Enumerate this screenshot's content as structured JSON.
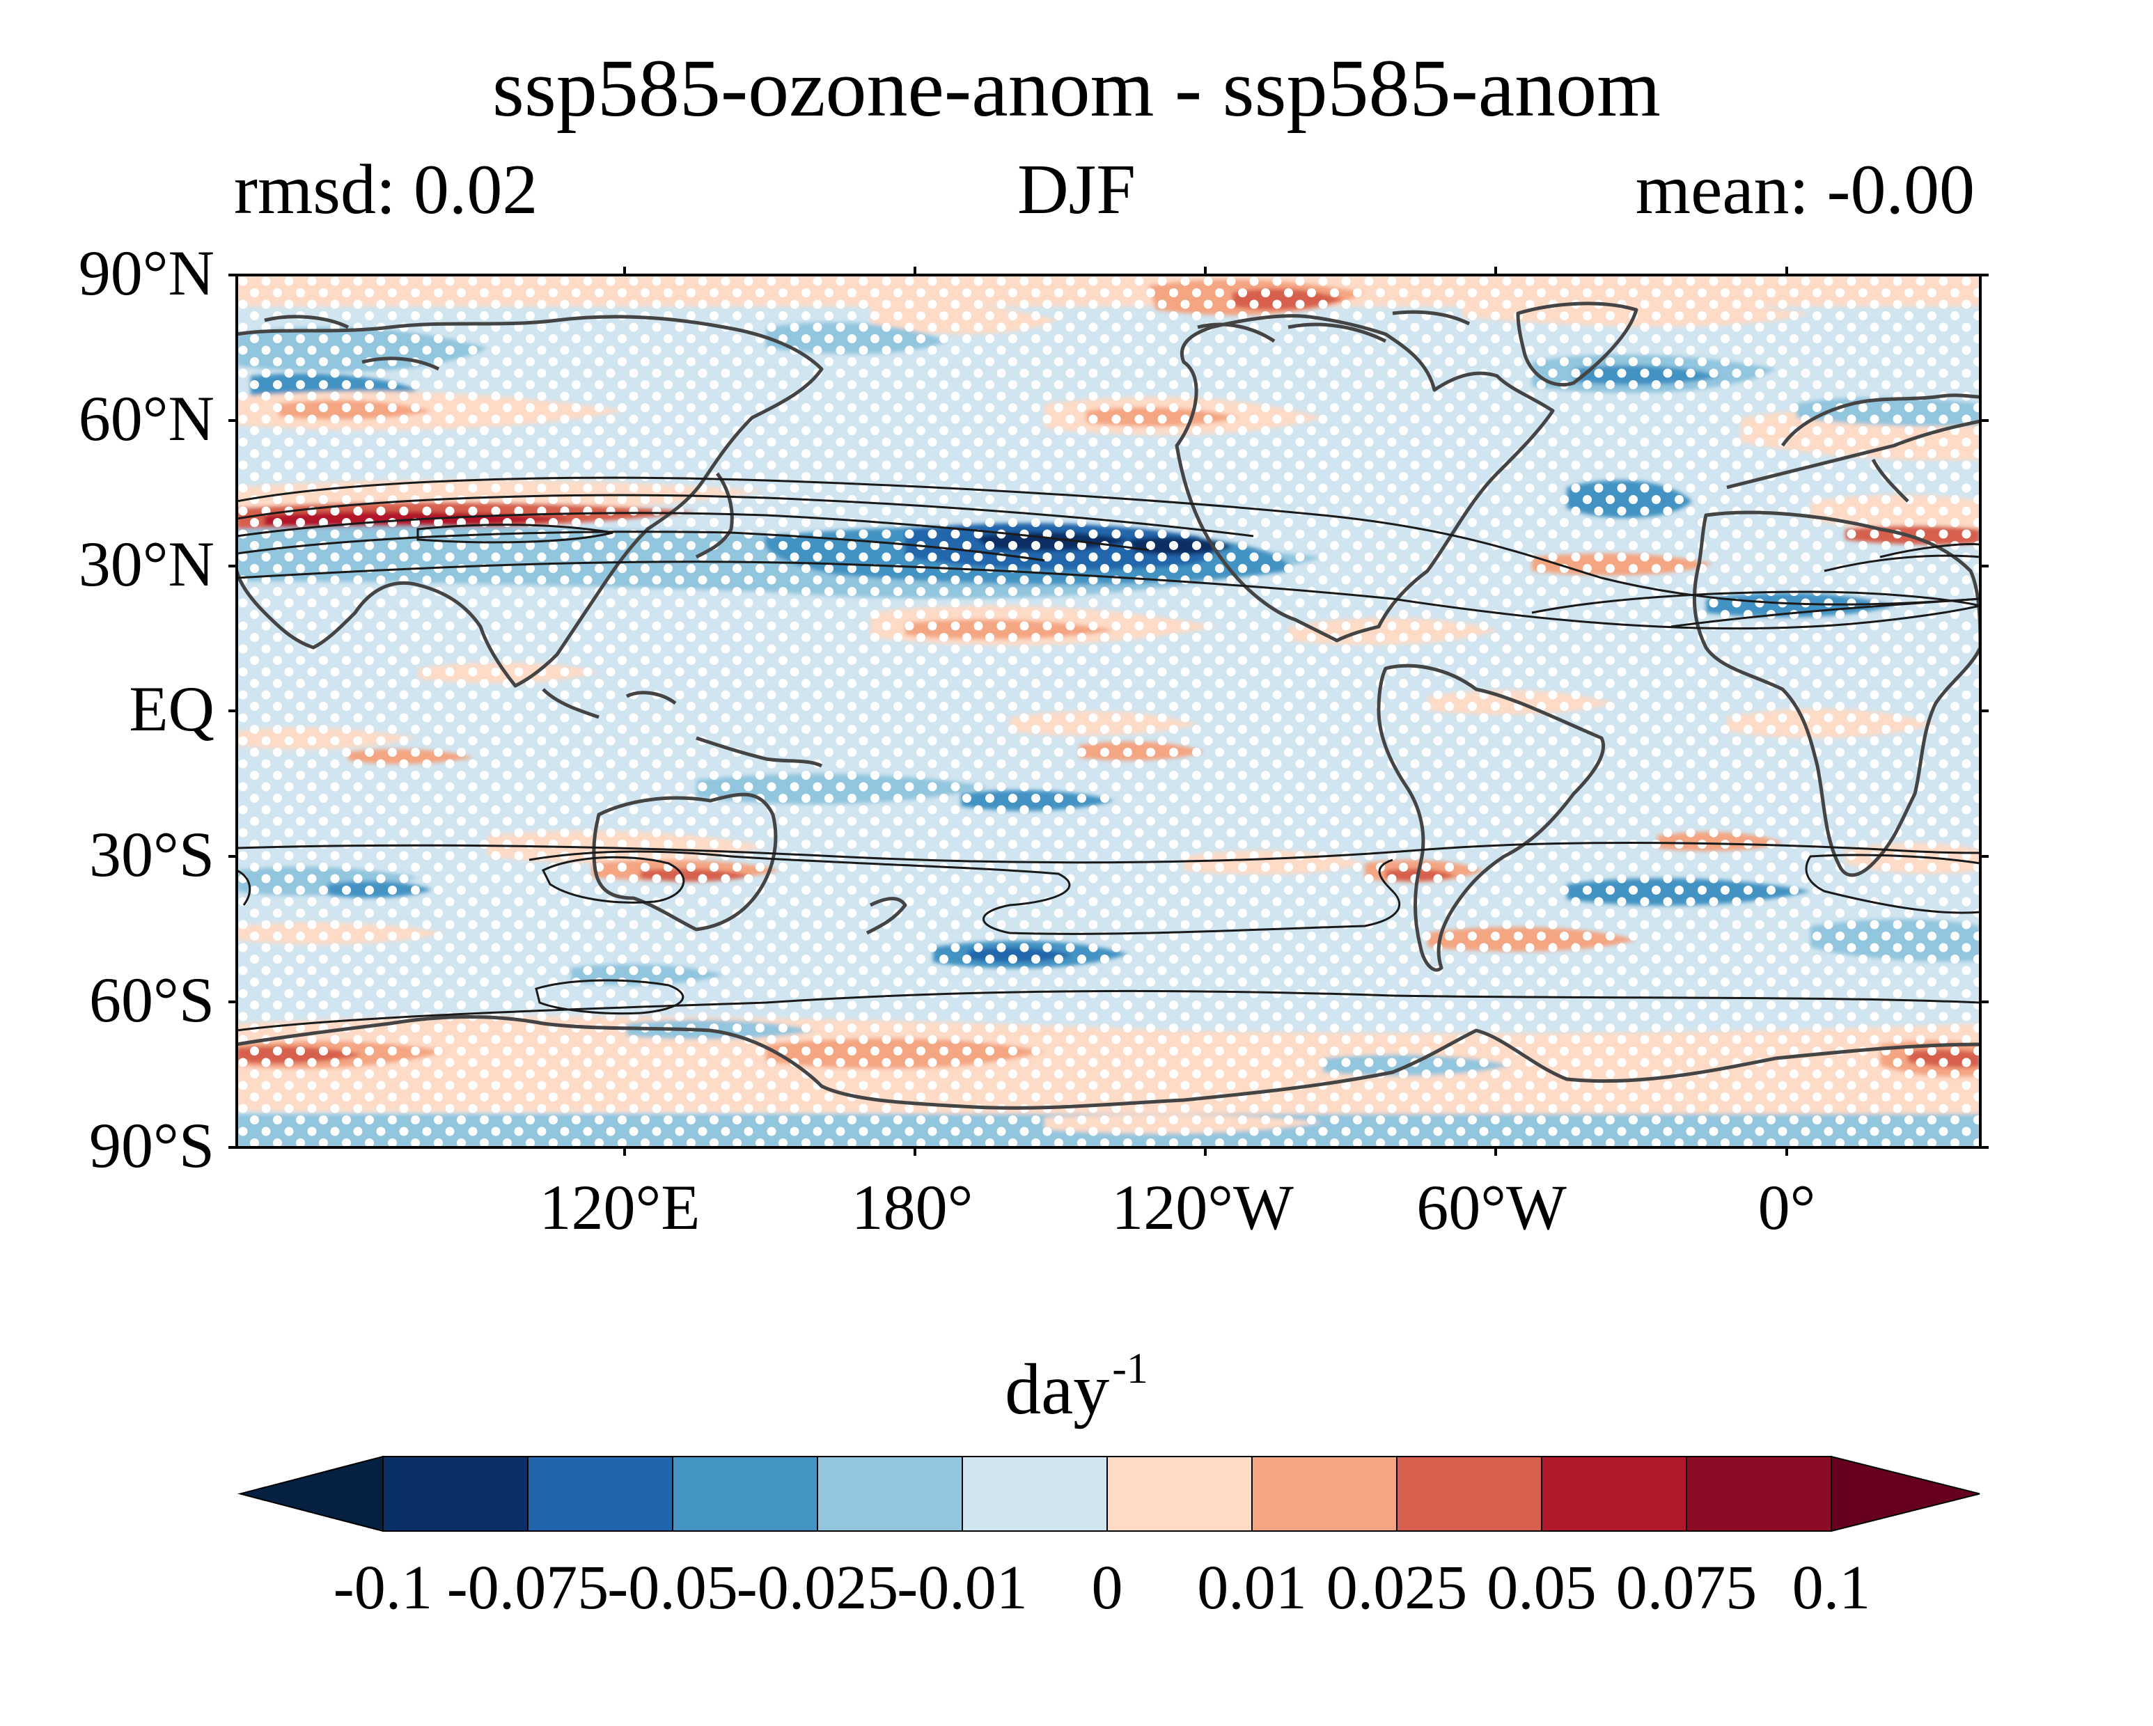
{
  "map": {
    "title": "ssp585-ozone-anom - ssp585-anom",
    "stat_left": "rmsd: 0.02",
    "season": "DJF",
    "stat_right": "mean: -0.00",
    "lat_ticks": [
      "90°N",
      "60°N",
      "30°N",
      "EQ",
      "30°S",
      "60°S",
      "90°S"
    ],
    "lon_ticks": [
      "120°E",
      "180°",
      "120°W",
      "60°W",
      "0°"
    ],
    "projection": "PlateCarree, centered on 150°W",
    "stippling": "white dots",
    "contours": "black lines",
    "coastlines": "dark gray"
  },
  "colorbar": {
    "units_base": "day",
    "units_exp": "-1",
    "tick_labels": [
      "-0.1",
      "-0.075",
      "-0.05",
      "-0.025",
      "-0.01",
      "0",
      "0.01",
      "0.025",
      "0.05",
      "0.075",
      "0.1"
    ],
    "colors": [
      "#052041",
      "#0a2f64",
      "#2166ac",
      "#4393c3",
      "#92c5de",
      "#d1e5f0",
      "#fddbc7",
      "#f4a582",
      "#d6604d",
      "#b2182b",
      "#8a0c25",
      "#67001f"
    ],
    "extend": "both"
  }
}
